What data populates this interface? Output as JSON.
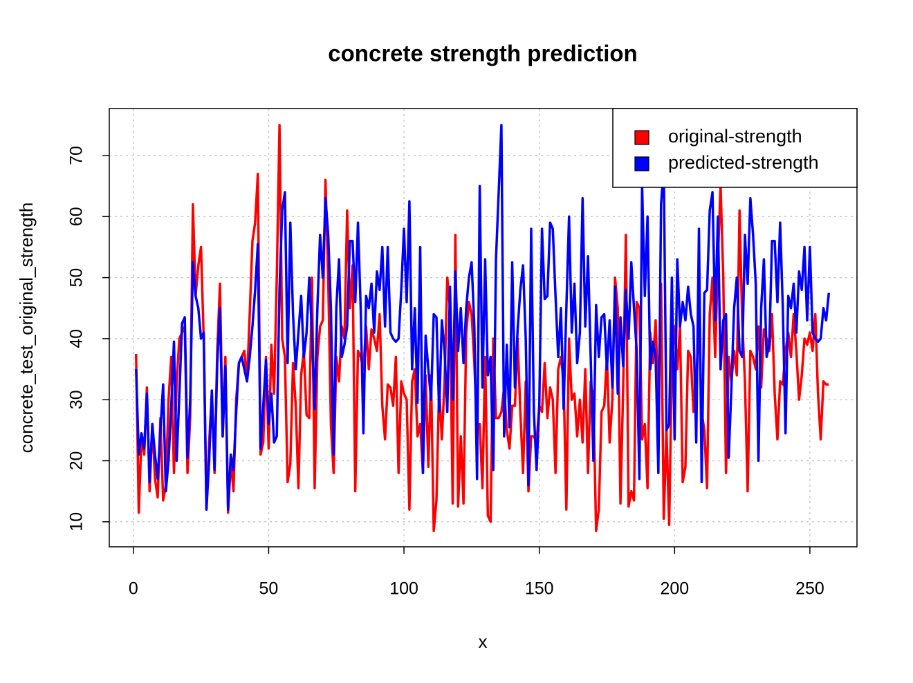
{
  "chart_data": {
    "type": "line",
    "title": "concrete strength prediction",
    "x_label": "x",
    "y_label": "concrete_test_original_strength",
    "xlim": [
      -8.9,
      267.4
    ],
    "ylim": [
      5.9,
      77.7
    ],
    "xticks": [
      0,
      50,
      100,
      150,
      200,
      250
    ],
    "yticks": [
      10,
      20,
      30,
      40,
      50,
      60,
      70
    ],
    "grid": true,
    "legend": "topright",
    "x": [
      1,
      2,
      3,
      4,
      5,
      6,
      7,
      8,
      9,
      10,
      11,
      12,
      13,
      14,
      15,
      16,
      17,
      18,
      19,
      20,
      21,
      22,
      23,
      24,
      25,
      26,
      27,
      28,
      29,
      30,
      31,
      32,
      33,
      34,
      35,
      36,
      37,
      38,
      39,
      40,
      41,
      42,
      43,
      44,
      45,
      46,
      47,
      48,
      49,
      50,
      51,
      52,
      53,
      54,
      55,
      56,
      57,
      58,
      59,
      60,
      61,
      62,
      63,
      64,
      65,
      66,
      67,
      68,
      69,
      70,
      71,
      72,
      73,
      74,
      75,
      76,
      77,
      78,
      79,
      80,
      81,
      82,
      83,
      84,
      85,
      86,
      87,
      88,
      89,
      90,
      91,
      92,
      93,
      94,
      95,
      96,
      97,
      98,
      99,
      100,
      101,
      102,
      103,
      104,
      105,
      106,
      107,
      108,
      109,
      110,
      111,
      112,
      113,
      114,
      115,
      116,
      117,
      118,
      119,
      120,
      121,
      122,
      123,
      124,
      125,
      126,
      127,
      128,
      129,
      130,
      131,
      132,
      133,
      134,
      135,
      136,
      137,
      138,
      139,
      140,
      141,
      142,
      143,
      144,
      145,
      146,
      147,
      148,
      149,
      150,
      151,
      152,
      153,
      154,
      155,
      156,
      157,
      158,
      159,
      160,
      161,
      162,
      163,
      164,
      165,
      166,
      167,
      168,
      169,
      170,
      171,
      172,
      173,
      174,
      175,
      176,
      177,
      178,
      179,
      180,
      181,
      182,
      183,
      184,
      185,
      186,
      187,
      188,
      189,
      190,
      191,
      192,
      193,
      194,
      195,
      196,
      197,
      198,
      199,
      200,
      201,
      202,
      203,
      204,
      205,
      206,
      207,
      208,
      209,
      210,
      211,
      212,
      213,
      214,
      215,
      216,
      217,
      218,
      219,
      220,
      221,
      222,
      223,
      224,
      225,
      226,
      227,
      228,
      229,
      230,
      231,
      232,
      233,
      234,
      235,
      236,
      237,
      238,
      239,
      240,
      241,
      242,
      243,
      244,
      245,
      246,
      247,
      248,
      249,
      250,
      251,
      252,
      253,
      254,
      255,
      256,
      257
    ],
    "series": [
      {
        "name": "original-strength",
        "color": "#ff0000",
        "values": [
          37.5,
          11.5,
          24,
          21,
          32,
          15,
          26,
          17,
          14,
          27,
          13.5,
          16,
          30,
          37,
          18,
          33,
          40,
          41,
          42,
          18,
          27,
          62,
          47,
          52,
          55,
          40,
          12,
          23,
          31,
          18,
          38,
          49,
          24,
          37,
          11.5,
          20,
          15,
          30,
          36,
          37,
          38,
          33,
          44,
          56,
          59,
          67,
          21,
          23,
          37,
          22,
          39,
          31,
          50,
          75,
          40,
          37,
          16.5,
          19.5,
          36,
          29,
          15.5,
          34,
          38,
          27.5,
          27,
          50,
          15.5,
          37,
          42,
          43,
          66,
          50,
          26,
          18,
          37,
          33,
          42,
          40,
          61,
          45,
          52,
          15,
          38,
          37,
          35,
          42,
          35,
          41.5,
          40,
          38,
          44,
          29,
          23.5,
          32.5,
          32,
          29,
          37,
          18,
          33,
          31,
          30,
          12,
          33,
          35,
          24,
          26,
          18,
          34,
          19,
          34,
          8.5,
          13.5,
          32,
          23.5,
          33,
          50,
          45,
          13,
          57,
          12.5,
          24,
          13,
          41,
          46,
          44,
          36,
          25,
          26,
          15.5,
          37,
          11,
          10,
          40,
          27,
          27,
          28,
          32,
          25,
          22,
          29,
          29,
          40,
          28,
          18,
          33,
          15,
          24,
          24,
          23,
          29,
          28,
          36,
          27,
          32,
          30,
          18,
          35,
          37,
          33,
          12,
          40,
          30,
          31,
          24,
          30,
          23,
          35,
          18,
          33,
          30,
          8.5,
          12,
          28,
          29,
          37,
          23,
          30,
          50,
          45,
          13,
          32,
          57,
          12.5,
          15,
          13.5,
          46,
          45,
          23.5,
          26,
          15.5,
          41,
          36,
          43,
          29,
          49,
          10.5,
          25,
          9.5,
          36,
          42,
          35,
          42,
          16.5,
          19,
          38,
          37,
          28,
          33,
          43,
          28,
          25,
          15.5,
          44,
          50,
          37,
          53,
          65,
          50,
          18,
          37,
          33,
          38,
          34,
          61,
          43,
          33,
          15,
          38,
          37,
          35,
          42,
          32,
          41.5,
          40,
          38,
          44,
          31,
          23.5,
          33,
          32.5,
          38,
          41,
          37,
          44,
          38,
          30,
          34,
          40,
          39,
          41,
          38,
          44,
          31,
          23.5,
          33,
          32.5,
          32.5
        ]
      },
      {
        "name": "predicted-strength",
        "color": "#0000ff",
        "values": [
          35,
          21,
          24.5,
          22,
          31,
          16.5,
          26,
          21,
          17,
          25,
          32.5,
          15,
          20,
          29,
          39.5,
          20,
          31,
          42.5,
          43.5,
          20.5,
          30,
          52.5,
          47,
          45,
          40,
          41,
          12,
          20,
          31.5,
          18.5,
          36,
          45,
          24,
          35.5,
          12,
          21,
          18.5,
          28,
          36,
          37,
          35,
          33,
          37,
          42,
          48,
          55.5,
          22,
          29,
          36.5,
          26,
          31,
          23,
          24,
          48,
          61,
          64,
          36,
          59,
          44,
          35,
          41,
          47,
          37,
          41,
          50,
          41,
          28.5,
          45,
          57,
          50,
          63,
          57,
          45,
          21,
          45,
          53,
          37,
          39,
          42,
          56,
          56,
          46,
          59,
          45,
          24.5,
          47,
          45,
          49,
          41,
          51,
          48,
          55,
          42,
          55,
          41,
          40,
          39.5,
          40,
          48,
          58,
          46,
          62.5,
          35,
          45,
          29.5,
          55,
          18,
          40.5,
          35,
          30,
          44,
          43.5,
          28,
          43,
          38,
          28,
          48.5,
          30,
          51,
          38,
          45,
          36,
          45,
          50,
          52.5,
          42,
          17,
          65,
          32,
          53,
          34,
          37,
          18.5,
          53,
          64,
          75,
          24,
          39,
          25.5,
          52.5,
          32,
          41.5,
          48,
          52,
          40,
          16,
          58,
          28,
          18.5,
          29,
          58,
          46.5,
          47,
          59,
          58,
          47,
          37,
          45,
          28.5,
          45,
          60,
          41,
          49,
          36,
          41,
          63,
          42,
          53.5,
          37,
          20,
          45.5,
          37,
          43.5,
          44,
          35,
          43,
          32,
          48.5,
          31,
          43.5,
          35.5,
          48,
          40,
          52.5,
          45,
          38,
          17,
          65,
          47,
          60,
          35,
          39.5,
          37,
          18,
          62,
          68,
          25,
          26,
          50,
          23.5,
          53,
          42,
          46,
          43,
          48.5,
          44,
          42,
          23,
          58,
          16.5,
          47.5,
          48,
          61,
          64,
          43,
          60,
          35,
          43,
          44,
          20.5,
          32,
          45,
          50,
          38,
          37,
          57,
          49,
          63,
          57,
          49,
          20,
          45,
          53,
          37,
          39,
          56,
          56,
          46,
          59,
          45,
          24.5,
          47,
          45,
          49,
          41,
          51,
          48,
          55,
          43,
          55,
          41,
          40,
          39.5,
          40,
          45,
          43,
          47.5
        ]
      }
    ]
  }
}
